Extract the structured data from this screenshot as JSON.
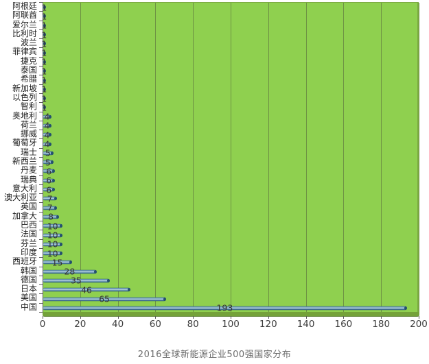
{
  "title": "2016全球新能源企业500强国家分布",
  "colors": {
    "plot_bg": "#8fd04f",
    "gridline": "#6e9244",
    "plot_border": "#7cab42",
    "band": "#74a23a",
    "band_edge": "#587e2d",
    "axis": "#5a5a5a",
    "text": "#303030",
    "bar_dark": "#2d597a",
    "bar_light": "#b7d2e0",
    "bar_cap": "#24506e",
    "title_text": "#6b6b6b"
  },
  "chart_data": {
    "type": "bar",
    "orientation": "horizontal",
    "title": "2016全球新能源企业500强国家分布",
    "categories": [
      "阿根廷",
      "阿联酋",
      "爱尔兰",
      "比利时",
      "波兰",
      "菲律宾",
      "捷克",
      "泰国",
      "希腊",
      "新加坡",
      "以色列",
      "智利",
      "奥地利",
      "荷兰",
      "挪威",
      "葡萄牙",
      "瑞士",
      "新西兰",
      "丹麦",
      "瑞典",
      "意大利",
      "澳大利亚",
      "英国",
      "加拿大",
      "巴西",
      "法国",
      "芬兰",
      "印度",
      "西班牙",
      "韩国",
      "德国",
      "日本",
      "美国",
      "中国"
    ],
    "values": [
      1,
      1,
      1,
      1,
      1,
      1,
      1,
      1,
      1,
      1,
      1,
      1,
      4,
      4,
      4,
      4,
      5,
      5,
      6,
      6,
      6,
      7,
      7,
      8,
      10,
      10,
      10,
      10,
      15,
      28,
      35,
      46,
      65,
      193
    ],
    "xlabel": "",
    "ylabel": "",
    "xlim": [
      0,
      200
    ],
    "x_ticks": [
      0,
      20,
      40,
      60,
      80,
      100,
      120,
      140,
      160,
      180,
      200
    ],
    "grid": true,
    "legend": "none",
    "data_labels": "centered-on-bar"
  }
}
